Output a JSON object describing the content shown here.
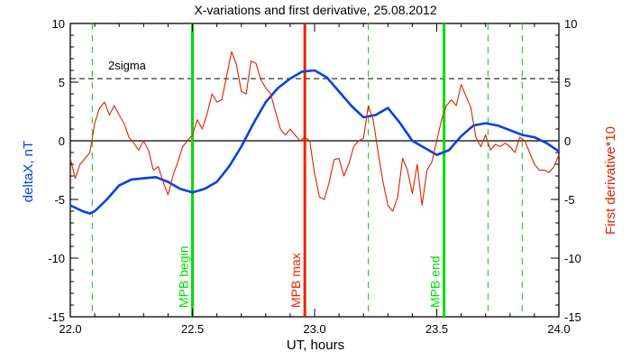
{
  "chart_data": {
    "type": "line",
    "title": "X-variations and first derivative, 25.08.2012",
    "xlabel": "UT, hours",
    "ylabel_left": "deltaX, nT",
    "ylabel_right": "First derivative*10",
    "xlim": [
      22.0,
      24.0
    ],
    "ylim": [
      -15,
      10
    ],
    "x_ticks": [
      "22.0",
      "22.5",
      "23.0",
      "23.5",
      "24.0"
    ],
    "y_ticks": [
      "10",
      "5",
      "0",
      "-5",
      "-10",
      "-15"
    ],
    "colors": {
      "deltaX": "#0044dd",
      "derivative": "#dd2200",
      "mpb_boundary": "#00dd00",
      "mpb_max": "#ee2200",
      "dashed_green": "#33cc33",
      "reference": "#000000"
    },
    "threshold": {
      "name": "2sigma",
      "value": 5.3
    },
    "markers": [
      {
        "label": "MPB begin",
        "x": 22.5,
        "color": "#00dd00"
      },
      {
        "label": "MPB max",
        "x": 22.96,
        "color": "#ee2200"
      },
      {
        "label": "MPB end",
        "x": 23.53,
        "color": "#00dd00"
      }
    ],
    "dashed_lines_x": [
      22.09,
      23.22,
      23.71,
      23.85
    ],
    "series": [
      {
        "key": "deltaX",
        "color": "#0044dd",
        "x": [
          22.0,
          22.05,
          22.08,
          22.1,
          22.15,
          22.2,
          22.25,
          22.3,
          22.35,
          22.4,
          22.45,
          22.5,
          22.55,
          22.6,
          22.65,
          22.7,
          22.75,
          22.8,
          22.85,
          22.9,
          22.95,
          23.0,
          23.05,
          23.1,
          23.15,
          23.2,
          23.25,
          23.3,
          23.35,
          23.4,
          23.45,
          23.5,
          23.55,
          23.6,
          23.65,
          23.7,
          23.75,
          23.8,
          23.85,
          23.9,
          23.95,
          24.0
        ],
        "values": [
          -5.5,
          -6.0,
          -6.2,
          -6.0,
          -5.0,
          -3.8,
          -3.3,
          -3.2,
          -3.1,
          -3.5,
          -4.1,
          -4.4,
          -4.1,
          -3.5,
          -2.2,
          -0.5,
          1.5,
          3.3,
          4.5,
          5.3,
          5.9,
          6.0,
          5.4,
          4.2,
          3.0,
          2.0,
          2.2,
          2.8,
          1.5,
          0.0,
          -0.6,
          -1.2,
          -0.8,
          0.4,
          1.3,
          1.5,
          1.3,
          0.9,
          0.5,
          0.3,
          -0.2,
          -0.9
        ]
      },
      {
        "key": "derivative",
        "color": "#dd2200",
        "x": [
          22.0,
          22.02,
          22.04,
          22.06,
          22.08,
          22.1,
          22.12,
          22.14,
          22.16,
          22.18,
          22.2,
          22.22,
          22.24,
          22.26,
          22.28,
          22.3,
          22.32,
          22.34,
          22.36,
          22.38,
          22.4,
          22.42,
          22.44,
          22.46,
          22.48,
          22.5,
          22.52,
          22.54,
          22.56,
          22.58,
          22.6,
          22.62,
          22.64,
          22.66,
          22.68,
          22.7,
          22.72,
          22.74,
          22.76,
          22.78,
          22.8,
          22.82,
          22.84,
          22.86,
          22.88,
          22.9,
          22.92,
          22.94,
          22.96,
          22.98,
          23.0,
          23.02,
          23.04,
          23.06,
          23.08,
          23.1,
          23.12,
          23.14,
          23.16,
          23.18,
          23.2,
          23.22,
          23.24,
          23.26,
          23.28,
          23.3,
          23.32,
          23.34,
          23.36,
          23.38,
          23.4,
          23.42,
          23.44,
          23.46,
          23.48,
          23.5,
          23.52,
          23.54,
          23.56,
          23.58,
          23.6,
          23.62,
          23.64,
          23.66,
          23.68,
          23.7,
          23.72,
          23.74,
          23.76,
          23.78,
          23.8,
          23.82,
          23.84,
          23.86,
          23.88,
          23.9,
          23.92,
          23.94,
          23.96,
          23.98,
          24.0
        ],
        "values": [
          -1.5,
          -3.2,
          -2.0,
          -1.5,
          -1.0,
          1.5,
          2.8,
          3.3,
          2.2,
          3.0,
          2.2,
          1.5,
          0.3,
          -0.2,
          -0.8,
          0.0,
          -0.8,
          -2.5,
          -2.2,
          -3.5,
          -4.6,
          -3.0,
          -1.8,
          -0.5,
          0.0,
          0.5,
          1.8,
          1.0,
          2.3,
          4.0,
          3.3,
          3.5,
          5.5,
          7.6,
          6.5,
          4.2,
          4.0,
          6.8,
          6.6,
          5.2,
          4.5,
          4.0,
          2.5,
          1.0,
          0.5,
          1.0,
          0.5,
          0.0,
          0.3,
          0.0,
          -2.8,
          -4.8,
          -5.0,
          -3.5,
          -1.6,
          -1.5,
          -3.0,
          -2.0,
          -0.5,
          0.0,
          0.2,
          3.0,
          1.8,
          -1.0,
          -3.5,
          -5.5,
          -6.0,
          -4.8,
          -1.5,
          -2.5,
          -4.5,
          -2.0,
          -5.5,
          -2.5,
          -1.8,
          0.0,
          1.8,
          3.0,
          3.5,
          3.0,
          4.8,
          3.8,
          2.8,
          0.3,
          -0.5,
          0.5,
          -0.8,
          -0.3,
          -0.5,
          -0.2,
          -0.5,
          -1.0,
          0.3,
          0.0,
          -1.0,
          -2.0,
          -2.5,
          -2.5,
          -2.7,
          -2.2,
          -1.2
        ]
      }
    ]
  }
}
